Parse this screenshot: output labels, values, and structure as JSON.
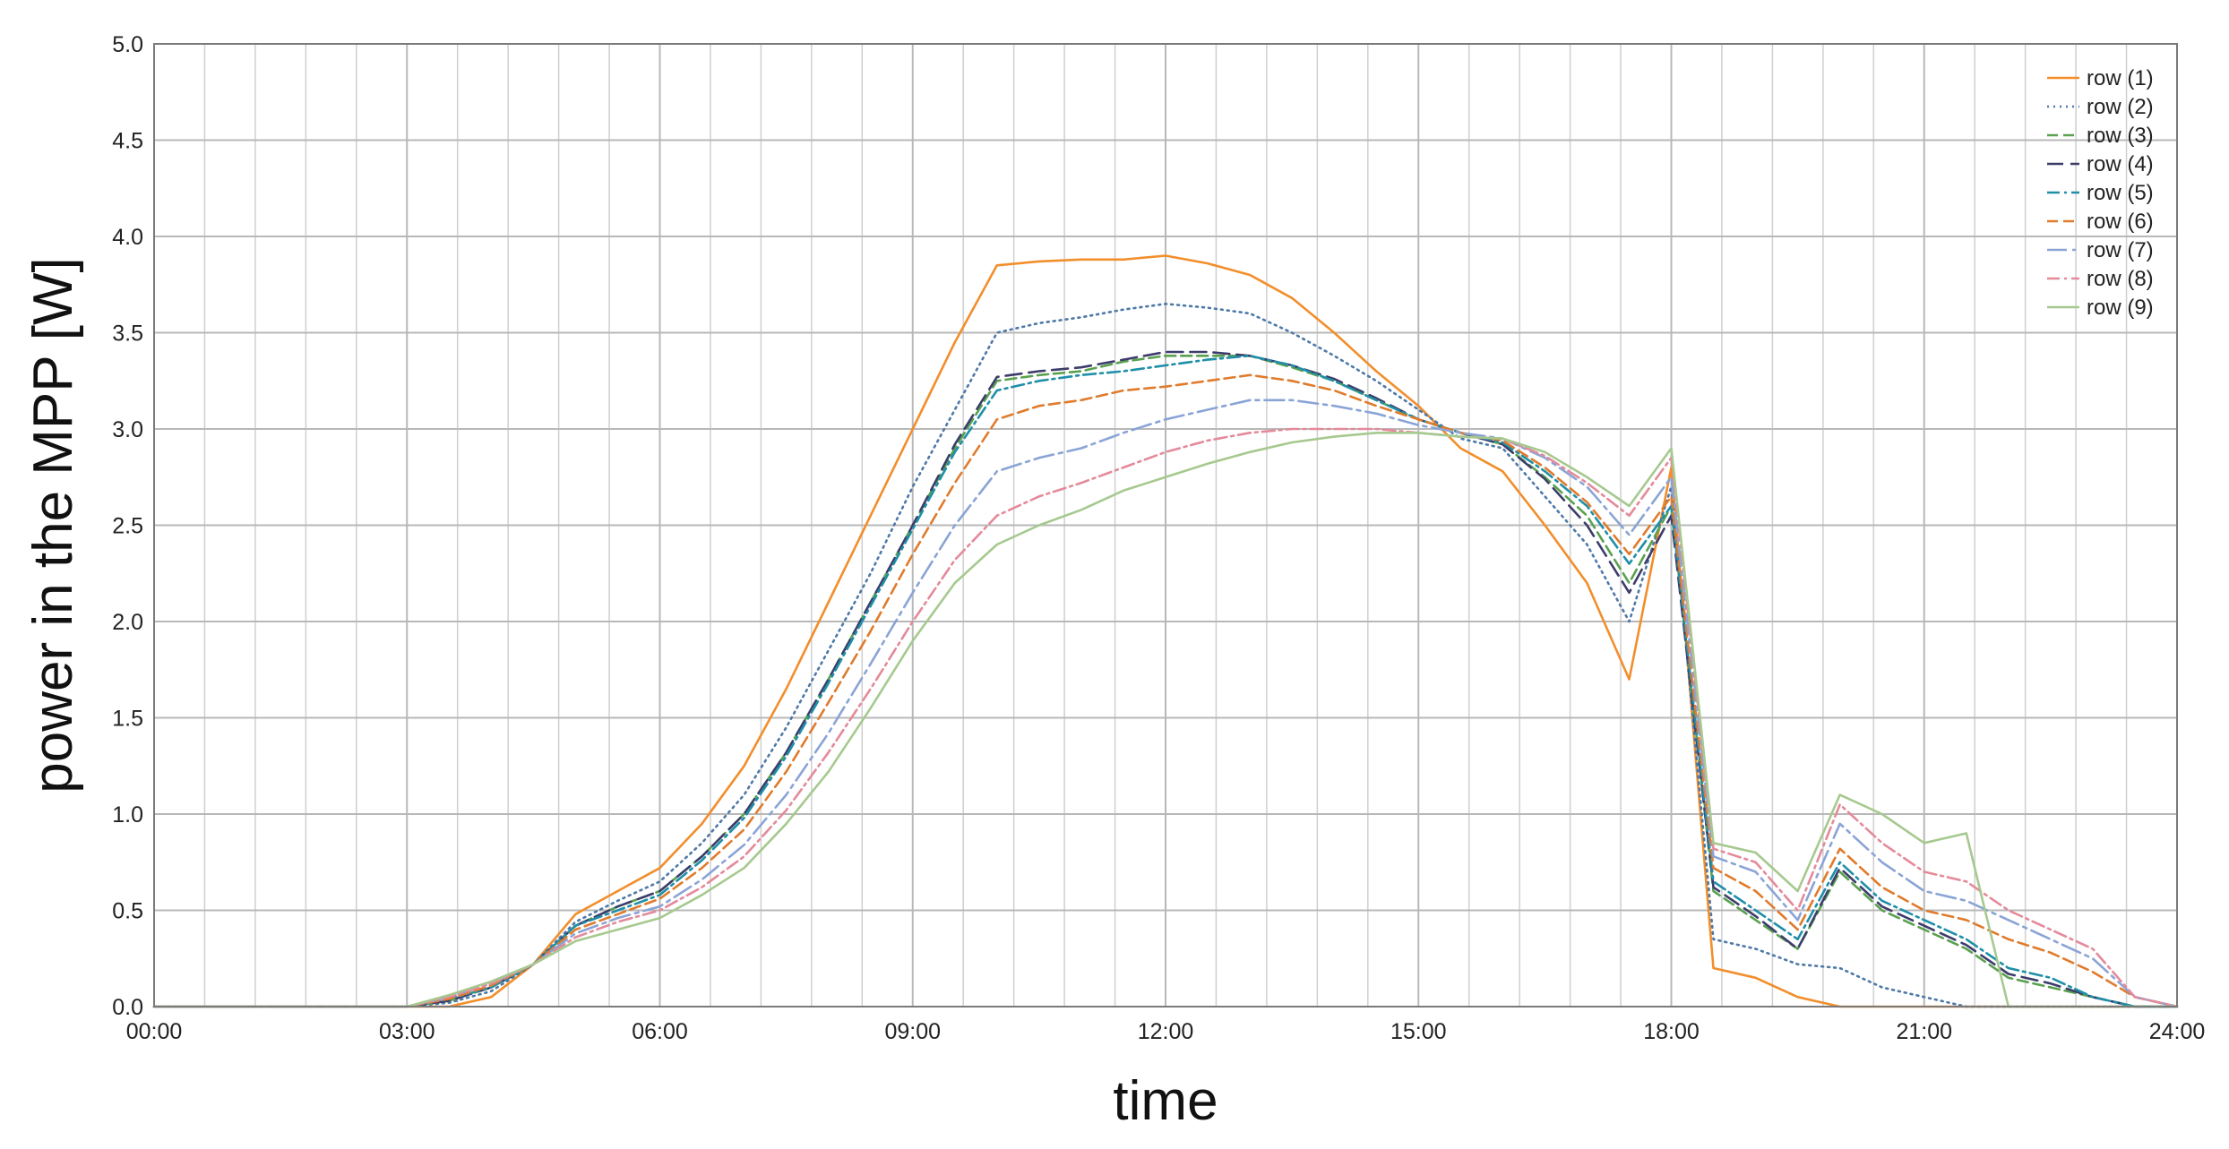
{
  "chart_data": {
    "type": "line",
    "title": "",
    "xlabel": "time",
    "ylabel": "power in the MPP [W]",
    "xlim": [
      "00:00",
      "24:00"
    ],
    "ylim": [
      0,
      5
    ],
    "x_ticks": [
      "00:00",
      "03:00",
      "06:00",
      "09:00",
      "12:00",
      "15:00",
      "18:00",
      "21:00",
      "24:00"
    ],
    "y_ticks": [
      "0.0",
      "0.5",
      "1.0",
      "1.5",
      "2.0",
      "2.5",
      "3.0",
      "3.5",
      "4.0",
      "4.5",
      "5.0"
    ],
    "x_minor_gridlines_per_major": 5,
    "grid": true,
    "legend_position": "top-right",
    "x_unit": "hours",
    "x": [
      0,
      3,
      3.5,
      4,
      4.5,
      5,
      5.5,
      6,
      6.5,
      7,
      7.5,
      8,
      8.5,
      9,
      9.5,
      10,
      10.5,
      11,
      11.5,
      12,
      12.5,
      13,
      13.5,
      14,
      14.5,
      15,
      15.5,
      16,
      16.5,
      17,
      17.5,
      18,
      18.5,
      19,
      19.5,
      20,
      20.5,
      21,
      21.5,
      22,
      22.5,
      23,
      23.5,
      24
    ],
    "series": [
      {
        "name": "row (1)",
        "color": "#f28e2b",
        "dash": "solid",
        "values": [
          0,
          0,
          0,
          0.05,
          0.22,
          0.48,
          0.6,
          0.72,
          0.95,
          1.25,
          1.65,
          2.1,
          2.55,
          3.0,
          3.45,
          3.85,
          3.87,
          3.88,
          3.88,
          3.9,
          3.86,
          3.8,
          3.68,
          3.5,
          3.3,
          3.12,
          2.9,
          2.78,
          2.5,
          2.2,
          1.7,
          2.8,
          0.2,
          0.15,
          0.05,
          0,
          0,
          0,
          0,
          0,
          0,
          0,
          0,
          0
        ]
      },
      {
        "name": "row (2)",
        "color": "#4e79a7",
        "dash": "dotted",
        "values": [
          0,
          0,
          0.02,
          0.08,
          0.22,
          0.44,
          0.55,
          0.65,
          0.85,
          1.1,
          1.45,
          1.85,
          2.25,
          2.7,
          3.1,
          3.5,
          3.55,
          3.58,
          3.62,
          3.65,
          3.63,
          3.6,
          3.5,
          3.38,
          3.25,
          3.1,
          2.95,
          2.9,
          2.65,
          2.4,
          2.0,
          2.7,
          0.35,
          0.3,
          0.22,
          0.2,
          0.1,
          0.05,
          0,
          0,
          0,
          0,
          0,
          0
        ]
      },
      {
        "name": "row (3)",
        "color": "#59a14f",
        "dash": "dashed",
        "values": [
          0,
          0,
          0.03,
          0.1,
          0.22,
          0.42,
          0.52,
          0.6,
          0.78,
          1.0,
          1.32,
          1.7,
          2.1,
          2.5,
          2.9,
          3.25,
          3.28,
          3.3,
          3.35,
          3.38,
          3.38,
          3.38,
          3.32,
          3.25,
          3.15,
          3.05,
          2.98,
          2.92,
          2.75,
          2.55,
          2.2,
          2.6,
          0.6,
          0.45,
          0.3,
          0.7,
          0.5,
          0.4,
          0.3,
          0.15,
          0.1,
          0.05,
          0,
          0
        ]
      },
      {
        "name": "row (4)",
        "color": "#3d3d6b",
        "dash": "longdash",
        "values": [
          0,
          0,
          0.03,
          0.1,
          0.22,
          0.42,
          0.52,
          0.6,
          0.78,
          1.0,
          1.32,
          1.7,
          2.1,
          2.5,
          2.92,
          3.27,
          3.3,
          3.32,
          3.36,
          3.4,
          3.4,
          3.38,
          3.33,
          3.26,
          3.16,
          3.05,
          2.98,
          2.92,
          2.74,
          2.5,
          2.15,
          2.55,
          0.62,
          0.47,
          0.3,
          0.72,
          0.52,
          0.42,
          0.32,
          0.17,
          0.12,
          0.05,
          0,
          0
        ]
      },
      {
        "name": "row (5)",
        "color": "#1f8fa8",
        "dash": "dashdot",
        "values": [
          0,
          0,
          0.04,
          0.1,
          0.22,
          0.42,
          0.5,
          0.58,
          0.76,
          0.98,
          1.3,
          1.68,
          2.08,
          2.48,
          2.88,
          3.2,
          3.25,
          3.28,
          3.3,
          3.33,
          3.36,
          3.38,
          3.33,
          3.25,
          3.15,
          3.05,
          2.98,
          2.93,
          2.78,
          2.6,
          2.3,
          2.6,
          0.65,
          0.5,
          0.35,
          0.75,
          0.55,
          0.45,
          0.35,
          0.2,
          0.15,
          0.05,
          0,
          0
        ]
      },
      {
        "name": "row (6)",
        "color": "#e07b2c",
        "dash": "dashed",
        "values": [
          0,
          0,
          0.04,
          0.11,
          0.22,
          0.4,
          0.48,
          0.56,
          0.72,
          0.92,
          1.22,
          1.58,
          1.95,
          2.35,
          2.72,
          3.05,
          3.12,
          3.15,
          3.2,
          3.22,
          3.25,
          3.28,
          3.25,
          3.2,
          3.12,
          3.05,
          2.98,
          2.94,
          2.8,
          2.62,
          2.35,
          2.65,
          0.72,
          0.6,
          0.4,
          0.82,
          0.62,
          0.5,
          0.45,
          0.35,
          0.28,
          0.18,
          0.05,
          0
        ]
      },
      {
        "name": "row (7)",
        "color": "#8aa4d6",
        "dash": "longdashdot",
        "values": [
          0,
          0,
          0.05,
          0.12,
          0.22,
          0.38,
          0.46,
          0.52,
          0.66,
          0.84,
          1.1,
          1.42,
          1.78,
          2.15,
          2.5,
          2.78,
          2.85,
          2.9,
          2.98,
          3.05,
          3.1,
          3.15,
          3.15,
          3.12,
          3.08,
          3.02,
          2.98,
          2.95,
          2.85,
          2.7,
          2.45,
          2.75,
          0.78,
          0.7,
          0.45,
          0.95,
          0.75,
          0.6,
          0.55,
          0.45,
          0.35,
          0.25,
          0.05,
          0
        ]
      },
      {
        "name": "row (8)",
        "color": "#e48a9a",
        "dash": "dashdot",
        "values": [
          0,
          0,
          0.05,
          0.12,
          0.22,
          0.36,
          0.44,
          0.5,
          0.62,
          0.78,
          1.02,
          1.32,
          1.65,
          2.0,
          2.32,
          2.55,
          2.65,
          2.72,
          2.8,
          2.88,
          2.94,
          2.98,
          3.0,
          3.0,
          3.0,
          2.98,
          2.96,
          2.95,
          2.86,
          2.72,
          2.55,
          2.85,
          0.82,
          0.75,
          0.5,
          1.05,
          0.85,
          0.7,
          0.65,
          0.5,
          0.4,
          0.3,
          0.05,
          0
        ]
      },
      {
        "name": "row (9)",
        "color": "#a6c98f",
        "dash": "solid",
        "values": [
          0,
          0,
          0.06,
          0.13,
          0.22,
          0.34,
          0.4,
          0.46,
          0.58,
          0.72,
          0.95,
          1.22,
          1.55,
          1.9,
          2.2,
          2.4,
          2.5,
          2.58,
          2.68,
          2.75,
          2.82,
          2.88,
          2.93,
          2.96,
          2.98,
          2.98,
          2.96,
          2.95,
          2.88,
          2.75,
          2.6,
          2.9,
          0.85,
          0.8,
          0.6,
          1.1,
          1.0,
          0.85,
          0.9,
          0,
          0,
          0,
          0,
          0
        ]
      }
    ]
  }
}
